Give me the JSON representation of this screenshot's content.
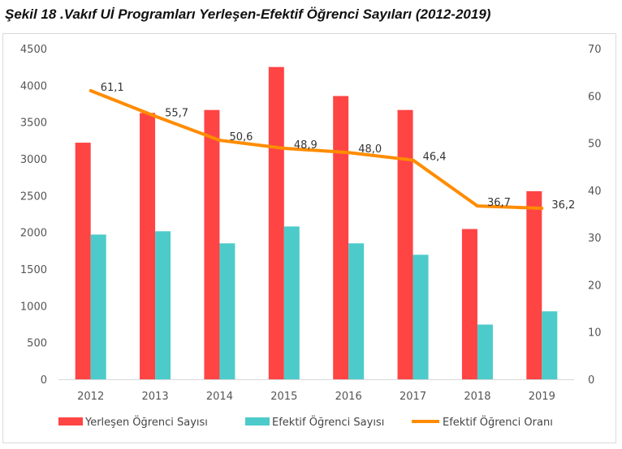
{
  "chart_data": {
    "type": "bar",
    "title": "Şekil 18 .Vakıf Uİ Programları Yerleşen-Efektif Öğrenci Sayıları (2012-2019)",
    "categories": [
      "2012",
      "2013",
      "2014",
      "2015",
      "2016",
      "2017",
      "2018",
      "2019"
    ],
    "series": [
      {
        "name": "Yerleşen Öğrenci Sayısı",
        "kind": "bar",
        "axis": "left",
        "color": "#ff4444",
        "values": [
          3220,
          3625,
          3665,
          4250,
          3855,
          3665,
          2045,
          2560
        ]
      },
      {
        "name": "Efektif Öğrenci Sayısı",
        "kind": "bar",
        "axis": "left",
        "color": "#4dcbcb",
        "values": [
          1970,
          2015,
          1850,
          2080,
          1850,
          1695,
          745,
          925
        ]
      },
      {
        "name": "Efektif Öğrenci Oranı",
        "kind": "line",
        "axis": "right",
        "color": "#ff8c00",
        "values": [
          61.1,
          55.7,
          50.6,
          48.9,
          48.0,
          46.4,
          36.7,
          36.2
        ],
        "labels": [
          "61,1",
          "55,7",
          "50,6",
          "48,9",
          "48,0",
          "46,4",
          "36,7",
          "36,2"
        ]
      }
    ],
    "y_left": {
      "range": [
        0,
        4500
      ],
      "ticks": [
        "0",
        "500",
        "1000",
        "1500",
        "2000",
        "2500",
        "3000",
        "3500",
        "4000",
        "4500"
      ]
    },
    "y_right": {
      "range": [
        0,
        70
      ],
      "ticks": [
        "0",
        "10",
        "20",
        "30",
        "40",
        "50",
        "60",
        "70"
      ]
    },
    "grid": false,
    "legend_position": "bottom"
  }
}
